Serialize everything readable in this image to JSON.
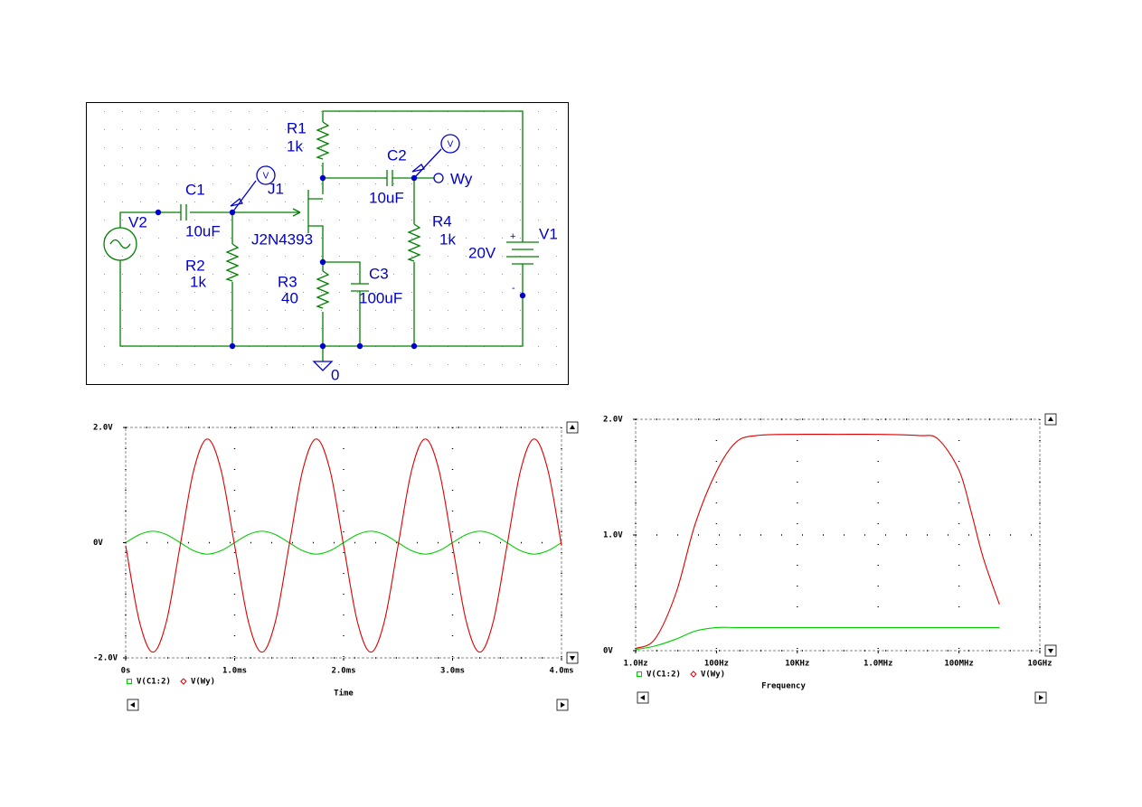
{
  "schematic": {
    "r1": {
      "name": "R1",
      "value": "1k"
    },
    "c2": {
      "name": "C2",
      "value": "10uF"
    },
    "output_net": "Wy",
    "j1": {
      "name": "J1",
      "value": "J2N4393"
    },
    "c1": {
      "name": "C1",
      "value": "10uF"
    },
    "v2": {
      "name": "V2"
    },
    "r2": {
      "name": "R2",
      "value": "1k"
    },
    "r3": {
      "name": "R3",
      "value": "40"
    },
    "c3": {
      "name": "C3",
      "value": "100uF"
    },
    "r4": {
      "name": "R4",
      "value": "1k"
    },
    "v1": {
      "name": "V1",
      "value": "20V",
      "plus": "+",
      "minus": "-"
    },
    "ground": "0",
    "probe": "V"
  },
  "chart_data": [
    {
      "type": "line",
      "x_label": "Time",
      "x": [
        0,
        0.125,
        0.25,
        0.375,
        0.5,
        0.625,
        0.75,
        0.875,
        1,
        1.125,
        1.25,
        1.375,
        1.5,
        1.625,
        1.75,
        1.875,
        2,
        2.125,
        2.25,
        2.375,
        2.5,
        2.625,
        2.75,
        2.875,
        3,
        3.125,
        3.25,
        3.375,
        3.5,
        3.625,
        3.75,
        3.875,
        4
      ],
      "xlim": [
        0,
        4
      ],
      "xticks": [
        {
          "value": 0,
          "label": "0s"
        },
        {
          "value": 1,
          "label": "1.0ms"
        },
        {
          "value": 2,
          "label": "2.0ms"
        },
        {
          "value": 3,
          "label": "3.0ms"
        },
        {
          "value": 4,
          "label": "4.0ms"
        }
      ],
      "ylim": [
        -2,
        2
      ],
      "yticks": [
        {
          "value": -2,
          "label": "-2.0V"
        },
        {
          "value": 0,
          "label": "0V"
        },
        {
          "value": 2,
          "label": "2.0V"
        }
      ],
      "grid": true,
      "series": [
        {
          "name": "V(C1:2)",
          "color": "#00cc00",
          "marker": "square",
          "values": [
            0,
            0.14,
            0.2,
            0.14,
            0,
            -0.14,
            -0.2,
            -0.14,
            0,
            0.14,
            0.2,
            0.14,
            0,
            -0.14,
            -0.2,
            -0.14,
            0,
            0.14,
            0.2,
            0.14,
            0,
            -0.14,
            -0.2,
            -0.14,
            0,
            0.14,
            0.2,
            0.14,
            0,
            -0.14,
            -0.2,
            -0.14,
            0
          ]
        },
        {
          "name": "V(Wy)",
          "color": "#dd0000",
          "marker": "diamond",
          "values": [
            -0.05,
            -1.36,
            -1.9,
            -1.36,
            -0.05,
            1.26,
            1.8,
            1.26,
            -0.05,
            -1.36,
            -1.9,
            -1.36,
            -0.05,
            1.26,
            1.8,
            1.26,
            -0.05,
            -1.36,
            -1.9,
            -1.36,
            -0.05,
            1.26,
            1.8,
            1.26,
            -0.05,
            -1.36,
            -1.9,
            -1.36,
            -0.05,
            1.26,
            1.8,
            1.26,
            -0.05
          ]
        }
      ]
    },
    {
      "type": "line",
      "x_label": "Frequency",
      "log_x": true,
      "x": [
        1,
        3,
        10,
        30,
        100,
        300,
        1000,
        10000,
        100000,
        1000000,
        10000000,
        30000000,
        100000000,
        200000000,
        400000000,
        1000000000
      ],
      "xlim": [
        1,
        10000000000
      ],
      "xticks": [
        {
          "value": 1,
          "label": "1.0Hz"
        },
        {
          "value": 100,
          "label": "100Hz"
        },
        {
          "value": 10000,
          "label": "10KHz"
        },
        {
          "value": 1000000,
          "label": "1.0MHz"
        },
        {
          "value": 100000000,
          "label": "100MHz"
        },
        {
          "value": 10000000000,
          "label": "10GHz"
        }
      ],
      "ylim": [
        0,
        2
      ],
      "yticks": [
        {
          "value": 0,
          "label": "0V"
        },
        {
          "value": 1,
          "label": "1.0V"
        },
        {
          "value": 2,
          "label": "2.0V"
        }
      ],
      "grid": true,
      "series": [
        {
          "name": "V(C1:2)",
          "color": "#00cc00",
          "marker": "square",
          "values": [
            0.01,
            0.04,
            0.1,
            0.17,
            0.2,
            0.2,
            0.2,
            0.2,
            0.2,
            0.2,
            0.2,
            0.2,
            0.2,
            0.2,
            0.2,
            0.2
          ]
        },
        {
          "name": "V(Wy)",
          "color": "#dd0000",
          "marker": "diamond",
          "values": [
            0.02,
            0.1,
            0.5,
            1.1,
            1.55,
            1.8,
            1.86,
            1.87,
            1.87,
            1.87,
            1.86,
            1.83,
            1.56,
            1.2,
            0.8,
            0.4
          ]
        }
      ]
    }
  ]
}
